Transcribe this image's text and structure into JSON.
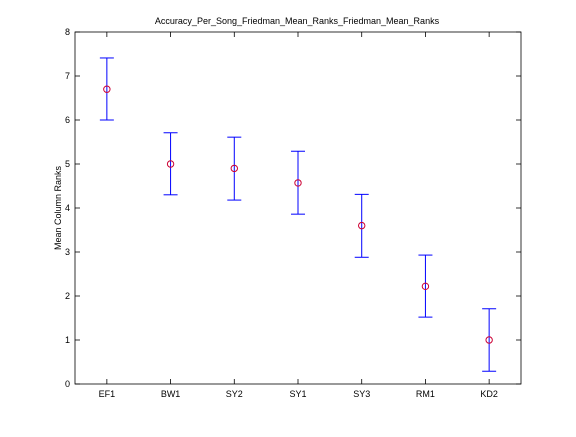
{
  "chart_data": {
    "type": "scatter",
    "title": "Accuracy_Per_Song_Friedman_Mean_Ranks_Friedman_Mean_Ranks",
    "xlabel": "",
    "ylabel": "Mean Column Ranks",
    "categories": [
      "EF1",
      "BW1",
      "SY2",
      "SY1",
      "SY3",
      "RM1",
      "KD2"
    ],
    "series": [
      {
        "values": [
          6.7,
          5.0,
          4.9,
          4.57,
          3.6,
          2.22,
          1.0
        ],
        "lower": [
          6.0,
          4.3,
          4.18,
          3.86,
          2.88,
          1.52,
          0.29
        ],
        "upper": [
          7.41,
          5.71,
          5.61,
          5.29,
          4.31,
          2.93,
          1.71
        ]
      }
    ],
    "ylim": [
      0,
      8
    ],
    "yticks": [
      "0",
      "1",
      "2",
      "3",
      "4",
      "5",
      "6",
      "7",
      "8"
    ],
    "grid": false,
    "colors": {
      "marker": "#cc0033",
      "errorbar": "#0000ff",
      "axis": "#000000"
    }
  }
}
